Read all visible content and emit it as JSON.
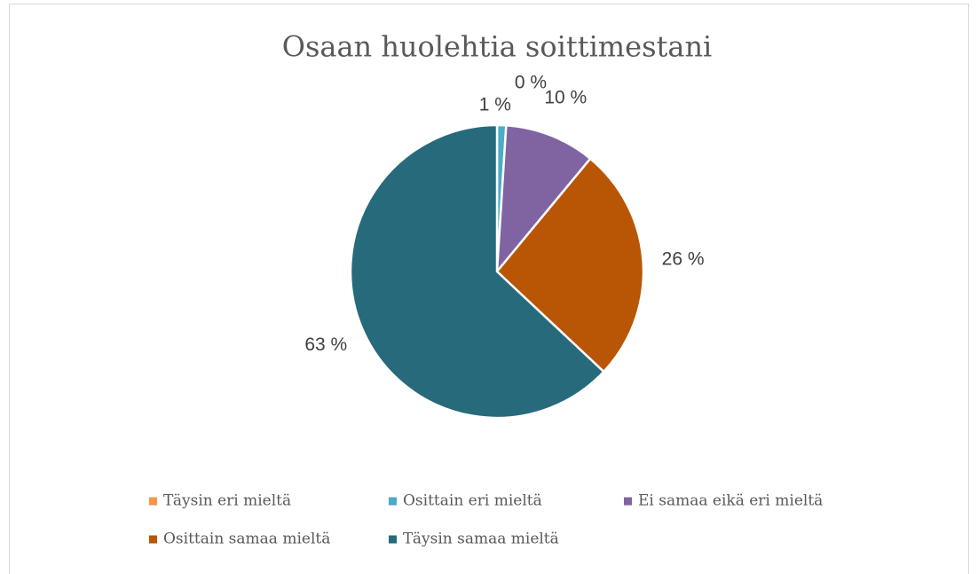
{
  "chart_data": {
    "type": "pie",
    "title": "Osaan huolehtia soittimestani",
    "categories": [
      "Täysin eri mieltä",
      "Osittain eri mieltä",
      "Ei samaa eikä eri mieltä",
      "Osittain samaa mieltä",
      "Täysin samaa mieltä"
    ],
    "values": [
      0,
      1,
      10,
      26,
      63
    ],
    "value_labels": [
      "0 %",
      "1 %",
      "10 %",
      "26 %",
      "63 %"
    ],
    "colors": [
      "#f79646",
      "#4bacc6",
      "#8064a2",
      "#b85605",
      "#276a7c"
    ],
    "legend": "bottom"
  }
}
